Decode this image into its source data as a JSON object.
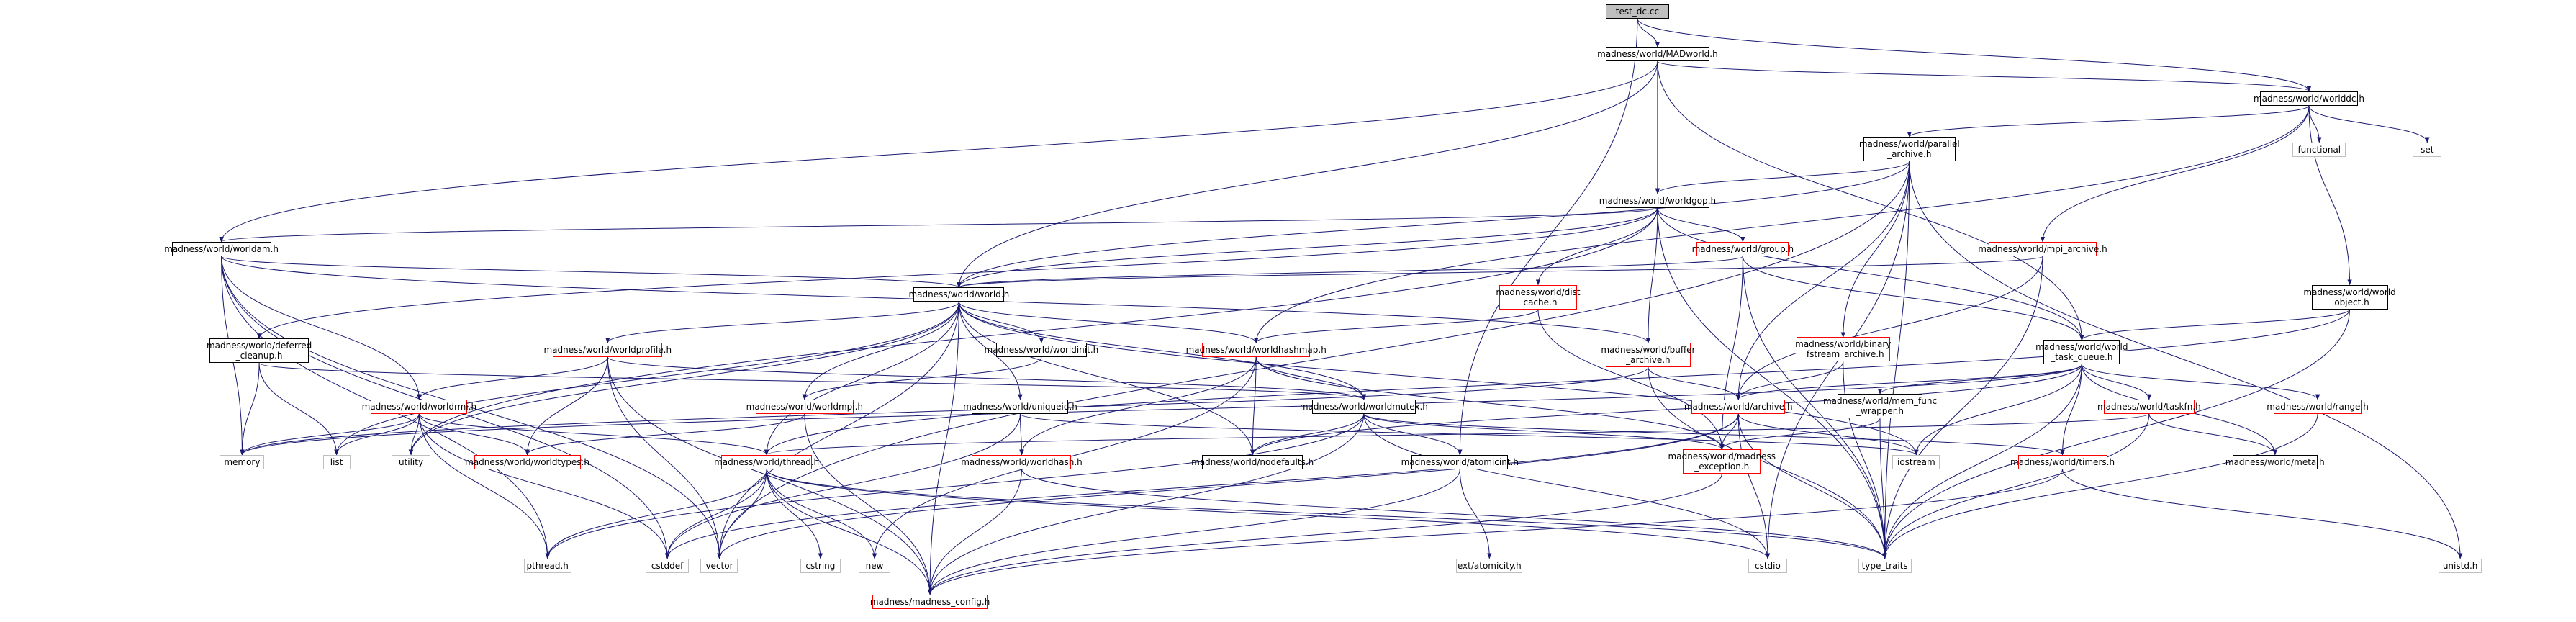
{
  "graph": {
    "colors": {
      "edge": "#191970",
      "root_fill": "#bfbfbf",
      "border_normal": "#000000",
      "border_missing": "#ff0000",
      "border_external": "#bfbfbf"
    },
    "nodes": {
      "test_dc": {
        "lines": [
          "test_dc.cc"
        ],
        "kind": "root"
      },
      "madworld": {
        "lines": [
          "madness/world/MADworld.h"
        ],
        "kind": "normal"
      },
      "worlddc": {
        "lines": [
          "madness/world/worlddc.h"
        ],
        "kind": "normal"
      },
      "parallel_archive": {
        "lines": [
          "madness/world/parallel",
          "_archive.h"
        ],
        "kind": "normal"
      },
      "functional": {
        "lines": [
          "functional"
        ],
        "kind": "external"
      },
      "set": {
        "lines": [
          "set"
        ],
        "kind": "external"
      },
      "worldgop": {
        "lines": [
          "madness/world/worldgop.h"
        ],
        "kind": "normal"
      },
      "worldam": {
        "lines": [
          "madness/world/worldam.h"
        ],
        "kind": "normal"
      },
      "group": {
        "lines": [
          "madness/world/group.h"
        ],
        "kind": "missing"
      },
      "mpi_archive": {
        "lines": [
          "madness/world/mpi_archive.h"
        ],
        "kind": "missing"
      },
      "world": {
        "lines": [
          "madness/world/world.h"
        ],
        "kind": "normal"
      },
      "dist_cache": {
        "lines": [
          "madness/world/dist",
          "_cache.h"
        ],
        "kind": "missing"
      },
      "world_object": {
        "lines": [
          "madness/world/world",
          "_object.h"
        ],
        "kind": "normal"
      },
      "deferred_cleanup": {
        "lines": [
          "madness/world/deferred",
          "_cleanup.h"
        ],
        "kind": "normal"
      },
      "worldprofile": {
        "lines": [
          "madness/world/worldprofile.h"
        ],
        "kind": "missing"
      },
      "worldinit": {
        "lines": [
          "madness/world/worldinit.h"
        ],
        "kind": "normal"
      },
      "worldhashmap": {
        "lines": [
          "madness/world/worldhashmap.h"
        ],
        "kind": "missing"
      },
      "buffer_archive": {
        "lines": [
          "madness/world/buffer",
          "_archive.h"
        ],
        "kind": "missing"
      },
      "binary_fstream": {
        "lines": [
          "madness/world/binary",
          "_fstream_archive.h"
        ],
        "kind": "missing"
      },
      "world_task_queue": {
        "lines": [
          "madness/world/world",
          "_task_queue.h"
        ],
        "kind": "normal"
      },
      "worldrmi": {
        "lines": [
          "madness/world/worldrmi.h"
        ],
        "kind": "missing"
      },
      "worldmpi": {
        "lines": [
          "madness/world/worldmpi.h"
        ],
        "kind": "missing"
      },
      "uniqueid": {
        "lines": [
          "madness/world/uniqueid.h"
        ],
        "kind": "normal"
      },
      "worldmutex": {
        "lines": [
          "madness/world/worldmutex.h"
        ],
        "kind": "normal"
      },
      "archive": {
        "lines": [
          "madness/world/archive.h"
        ],
        "kind": "missing"
      },
      "mem_func_wrapper": {
        "lines": [
          "madness/world/mem_func",
          "_wrapper.h"
        ],
        "kind": "normal"
      },
      "taskfn": {
        "lines": [
          "madness/world/taskfn.h"
        ],
        "kind": "missing"
      },
      "range": {
        "lines": [
          "madness/world/range.h"
        ],
        "kind": "missing"
      },
      "memory": {
        "lines": [
          "memory"
        ],
        "kind": "external"
      },
      "list": {
        "lines": [
          "list"
        ],
        "kind": "external"
      },
      "utility": {
        "lines": [
          "utility"
        ],
        "kind": "external"
      },
      "worldtypes": {
        "lines": [
          "madness/world/worldtypes.h"
        ],
        "kind": "missing"
      },
      "thread": {
        "lines": [
          "madness/world/thread.h"
        ],
        "kind": "missing"
      },
      "worldhash": {
        "lines": [
          "madness/world/worldhash.h"
        ],
        "kind": "missing"
      },
      "nodefaults": {
        "lines": [
          "madness/world/nodefaults.h"
        ],
        "kind": "normal"
      },
      "atomicint": {
        "lines": [
          "madness/world/atomicint.h"
        ],
        "kind": "normal"
      },
      "madness_exception": {
        "lines": [
          "madness/world/madness",
          "_exception.h"
        ],
        "kind": "missing"
      },
      "iostream": {
        "lines": [
          "iostream"
        ],
        "kind": "external"
      },
      "timers": {
        "lines": [
          "madness/world/timers.h"
        ],
        "kind": "missing"
      },
      "meta": {
        "lines": [
          "madness/world/meta.h"
        ],
        "kind": "normal"
      },
      "pthread": {
        "lines": [
          "pthread.h"
        ],
        "kind": "external"
      },
      "cstddef": {
        "lines": [
          "cstddef"
        ],
        "kind": "external"
      },
      "vector": {
        "lines": [
          "vector"
        ],
        "kind": "external"
      },
      "cstring": {
        "lines": [
          "cstring"
        ],
        "kind": "external"
      },
      "new": {
        "lines": [
          "new"
        ],
        "kind": "external"
      },
      "madness_config": {
        "lines": [
          "madness/madness_config.h"
        ],
        "kind": "missing"
      },
      "ext_atomicity": {
        "lines": [
          "ext/atomicity.h"
        ],
        "kind": "external"
      },
      "cstdio": {
        "lines": [
          "cstdio"
        ],
        "kind": "external"
      },
      "type_traits": {
        "lines": [
          "type_traits"
        ],
        "kind": "external"
      },
      "unistd": {
        "lines": [
          "unistd.h"
        ],
        "kind": "external"
      }
    },
    "edges": [
      [
        "test_dc",
        "madworld"
      ],
      [
        "test_dc",
        "worlddc"
      ],
      [
        "test_dc",
        "atomicint"
      ],
      [
        "madworld",
        "worlddc"
      ],
      [
        "madworld",
        "worldam"
      ],
      [
        "madworld",
        "world"
      ],
      [
        "madworld",
        "worldgop"
      ],
      [
        "madworld",
        "world_task_queue"
      ],
      [
        "worlddc",
        "parallel_archive"
      ],
      [
        "worlddc",
        "functional"
      ],
      [
        "worlddc",
        "set"
      ],
      [
        "worlddc",
        "world_object"
      ],
      [
        "worlddc",
        "mpi_archive"
      ],
      [
        "worlddc",
        "worldhashmap"
      ],
      [
        "parallel_archive",
        "worldgop"
      ],
      [
        "parallel_archive",
        "world"
      ],
      [
        "parallel_archive",
        "binary_fstream"
      ],
      [
        "parallel_archive",
        "archive"
      ],
      [
        "parallel_archive",
        "vector"
      ],
      [
        "parallel_archive",
        "type_traits"
      ],
      [
        "parallel_archive",
        "unistd"
      ],
      [
        "parallel_archive",
        "cstdio"
      ],
      [
        "worldgop",
        "world"
      ],
      [
        "worldgop",
        "group"
      ],
      [
        "worldgop",
        "dist_cache"
      ],
      [
        "worldgop",
        "buffer_archive"
      ],
      [
        "worldgop",
        "world_task_queue"
      ],
      [
        "worldgop",
        "deferred_cleanup"
      ],
      [
        "worldgop",
        "type_traits"
      ],
      [
        "worldgop",
        "utility"
      ],
      [
        "worldgop",
        "worldam"
      ],
      [
        "worldam",
        "world"
      ],
      [
        "worldam",
        "worldrmi"
      ],
      [
        "worldam",
        "buffer_archive"
      ],
      [
        "worldam",
        "memory"
      ],
      [
        "worldam",
        "pthread"
      ],
      [
        "worldam",
        "cstddef"
      ],
      [
        "worldam",
        "vector"
      ],
      [
        "group",
        "world"
      ],
      [
        "group",
        "world_task_queue"
      ],
      [
        "group",
        "madness_exception"
      ],
      [
        "group",
        "type_traits"
      ],
      [
        "mpi_archive",
        "archive"
      ],
      [
        "mpi_archive",
        "world"
      ],
      [
        "mpi_archive",
        "type_traits"
      ],
      [
        "world",
        "worldprofile"
      ],
      [
        "world",
        "worldinit"
      ],
      [
        "world",
        "worldhashmap"
      ],
      [
        "world",
        "uniqueid"
      ],
      [
        "world",
        "worldmpi"
      ],
      [
        "world",
        "worldmutex"
      ],
      [
        "world",
        "thread"
      ],
      [
        "world",
        "nodefaults"
      ],
      [
        "world",
        "madness_config"
      ],
      [
        "world",
        "list"
      ],
      [
        "world",
        "utility"
      ],
      [
        "world",
        "iostream"
      ],
      [
        "world",
        "vector"
      ],
      [
        "dist_cache",
        "worldhashmap"
      ],
      [
        "dist_cache",
        "madness_exception"
      ],
      [
        "world_object",
        "world_task_queue"
      ],
      [
        "world_object",
        "type_traits"
      ],
      [
        "world_object",
        "thread"
      ],
      [
        "deferred_cleanup",
        "worldmutex"
      ],
      [
        "deferred_cleanup",
        "memory"
      ],
      [
        "deferred_cleanup",
        "list"
      ],
      [
        "worldprofile",
        "worldrmi"
      ],
      [
        "worldprofile",
        "worldtypes"
      ],
      [
        "worldprofile",
        "worldmutex"
      ],
      [
        "worldprofile",
        "vector"
      ],
      [
        "worldprofile",
        "madness_config"
      ],
      [
        "worldinit",
        "worldmpi"
      ],
      [
        "worldhashmap",
        "worldmutex"
      ],
      [
        "worldhashmap",
        "worldhash"
      ],
      [
        "worldhashmap",
        "madness_exception"
      ],
      [
        "worldhashmap",
        "new"
      ],
      [
        "worldhashmap",
        "nodefaults"
      ],
      [
        "buffer_archive",
        "archive"
      ],
      [
        "buffer_archive",
        "memory"
      ],
      [
        "buffer_archive",
        "type_traits"
      ],
      [
        "binary_fstream",
        "archive"
      ],
      [
        "binary_fstream",
        "type_traits"
      ],
      [
        "world_task_queue",
        "taskfn"
      ],
      [
        "world_task_queue",
        "range"
      ],
      [
        "world_task_queue",
        "mem_func_wrapper"
      ],
      [
        "world_task_queue",
        "archive"
      ],
      [
        "world_task_queue",
        "timers"
      ],
      [
        "world_task_queue",
        "iostream"
      ],
      [
        "world_task_queue",
        "type_traits"
      ],
      [
        "world_task_queue",
        "nodefaults"
      ],
      [
        "world_task_queue",
        "memory"
      ],
      [
        "world_task_queue",
        "meta"
      ],
      [
        "worldrmi",
        "worldtypes"
      ],
      [
        "worldrmi",
        "thread"
      ],
      [
        "worldrmi",
        "memory"
      ],
      [
        "worldrmi",
        "list"
      ],
      [
        "worldrmi",
        "utility"
      ],
      [
        "worldrmi",
        "pthread"
      ],
      [
        "worldrmi",
        "cstddef"
      ],
      [
        "worldmpi",
        "worldtypes"
      ],
      [
        "worldmpi",
        "madness_config"
      ],
      [
        "uniqueid",
        "worldhash"
      ],
      [
        "uniqueid",
        "cstddef"
      ],
      [
        "uniqueid",
        "iostream"
      ],
      [
        "worldmutex",
        "atomicint"
      ],
      [
        "worldmutex",
        "nodefaults"
      ],
      [
        "worldmutex",
        "madness_exception"
      ],
      [
        "worldmutex",
        "timers"
      ],
      [
        "worldmutex",
        "cstdio"
      ],
      [
        "worldmutex",
        "madness_config"
      ],
      [
        "worldmutex",
        "pthread"
      ],
      [
        "archive",
        "madness_exception"
      ],
      [
        "archive",
        "iostream"
      ],
      [
        "archive",
        "type_traits"
      ],
      [
        "archive",
        "cstddef"
      ],
      [
        "archive",
        "cstdio"
      ],
      [
        "archive",
        "vector"
      ],
      [
        "mem_func_wrapper",
        "madness_exception"
      ],
      [
        "mem_func_wrapper",
        "type_traits"
      ],
      [
        "taskfn",
        "meta"
      ],
      [
        "taskfn",
        "type_traits"
      ],
      [
        "taskfn",
        "thread"
      ],
      [
        "range",
        "type_traits"
      ],
      [
        "thread",
        "pthread"
      ],
      [
        "thread",
        "cstddef"
      ],
      [
        "thread",
        "vector"
      ],
      [
        "thread",
        "cstring"
      ],
      [
        "thread",
        "new"
      ],
      [
        "thread",
        "madness_config"
      ],
      [
        "thread",
        "cstdio"
      ],
      [
        "thread",
        "type_traits"
      ],
      [
        "worldhash",
        "madness_config"
      ],
      [
        "worldhash",
        "type_traits"
      ],
      [
        "atomicint",
        "madness_config"
      ],
      [
        "atomicint",
        "ext_atomicity"
      ],
      [
        "madness_exception",
        "madness_config"
      ],
      [
        "timers",
        "unistd"
      ],
      [
        "timers",
        "madness_config"
      ]
    ]
  }
}
